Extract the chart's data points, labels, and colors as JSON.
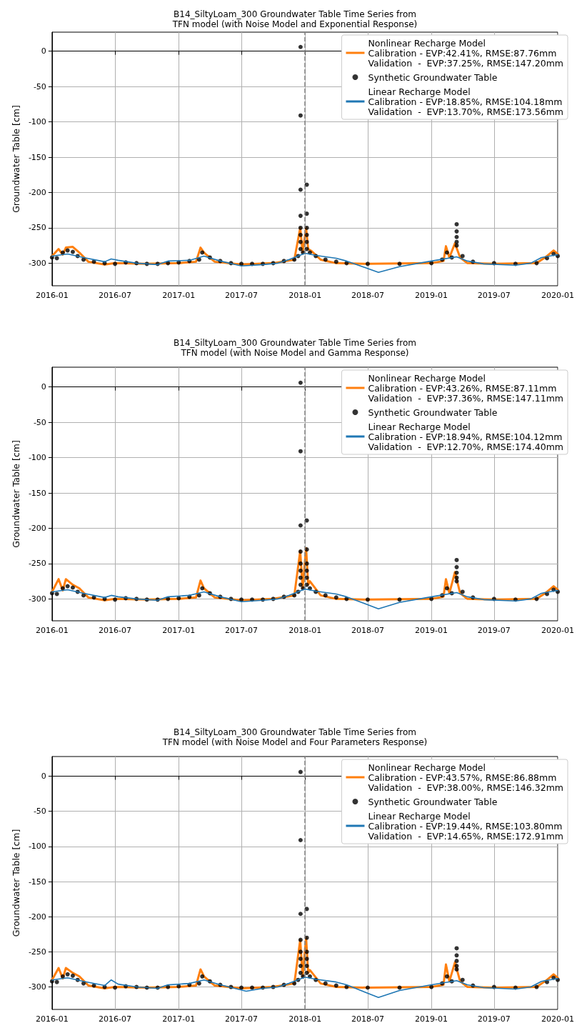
{
  "chart_data": [
    {
      "type": "line",
      "title": "B14_SiltyLoam_300 Groundwater Table Time Series from\nTFN model (with Noise Model and Exponential Response)",
      "ylabel": "Groundwater Table [cm]",
      "xlim": [
        "2016-01",
        "2020-01"
      ],
      "xticks": [
        "2016-01",
        "2016-07",
        "2017-01",
        "2017-07",
        "2018-01",
        "2018-07",
        "2019-01",
        "2019-07",
        "2020-01"
      ],
      "ylim": [
        -332,
        27
      ],
      "yticks": [
        -300,
        -250,
        -200,
        -150,
        -100,
        -50,
        0
      ],
      "grid": true,
      "legend": "top right",
      "ref_lines": [
        {
          "axis": "x",
          "value": "2018-01-01",
          "color": "#808080",
          "line_style": "dashed"
        }
      ],
      "series": [
        {
          "name": "Nonlinear Recharge Model\nCalibration - EVP:42.41%, RMSE:87.76mm\nValidation  -  EVP:37.25%, RMSE:147.20mm",
          "type": "line",
          "color": "#ff7f0e",
          "marker": "none",
          "line_style": "solid",
          "x": [
            "2016-01-01",
            "2016-01-20",
            "2016-02-01",
            "2016-02-10",
            "2016-03-01",
            "2016-03-20",
            "2016-04-15",
            "2016-06-01",
            "2016-07-01",
            "2016-10-01",
            "2017-01-01",
            "2017-02-20",
            "2017-03-05",
            "2017-03-15",
            "2017-04-15",
            "2017-07-01",
            "2017-10-01",
            "2017-12-01",
            "2017-12-18",
            "2017-12-25",
            "2018-01-04",
            "2018-01-10",
            "2018-01-20",
            "2018-02-15",
            "2018-04-01",
            "2018-07-01",
            "2019-01-01",
            "2019-02-05",
            "2019-02-12",
            "2019-02-22",
            "2019-03-10",
            "2019-03-25",
            "2019-04-15",
            "2019-07-01",
            "2019-11-01",
            "2019-12-01",
            "2019-12-20",
            "2020-01-01"
          ],
          "values": [
            -290,
            -280,
            -288,
            -278,
            -277,
            -285,
            -298,
            -302,
            -300,
            -301,
            -300,
            -298,
            -278,
            -285,
            -298,
            -302,
            -300,
            -295,
            -250,
            -285,
            -250,
            -280,
            -283,
            -295,
            -300,
            -301,
            -300,
            -297,
            -276,
            -292,
            -272,
            -292,
            -300,
            -301,
            -300,
            -290,
            -282,
            -287
          ]
        },
        {
          "name": "Synthetic Groundwater Table",
          "type": "scatter",
          "color": "#000000",
          "marker": "circle",
          "x": [
            "2016-01-01",
            "2016-01-15",
            "2016-02-01",
            "2016-02-15",
            "2016-03-01",
            "2016-03-15",
            "2016-04-01",
            "2016-05-01",
            "2016-06-01",
            "2016-07-01",
            "2016-08-01",
            "2016-09-01",
            "2016-10-01",
            "2016-11-01",
            "2016-12-01",
            "2017-01-01",
            "2017-02-01",
            "2017-03-01",
            "2017-03-10",
            "2017-04-01",
            "2017-05-01",
            "2017-06-01",
            "2017-07-01",
            "2017-08-01",
            "2017-09-01",
            "2017-10-01",
            "2017-11-01",
            "2017-12-01",
            "2017-12-12",
            "2017-12-19",
            "2017-12-19",
            "2017-12-19",
            "2017-12-19",
            "2017-12-19",
            "2017-12-19",
            "2017-12-19",
            "2017-12-19",
            "2017-12-26",
            "2018-01-06",
            "2018-01-06",
            "2018-01-06",
            "2018-01-06",
            "2018-01-06",
            "2018-01-06",
            "2018-01-15",
            "2018-02-01",
            "2018-03-01",
            "2018-04-01",
            "2018-05-01",
            "2018-07-01",
            "2018-10-01",
            "2019-01-01",
            "2019-02-01",
            "2019-02-15",
            "2019-03-01",
            "2019-03-15",
            "2019-03-15",
            "2019-03-15",
            "2019-03-15",
            "2019-03-15",
            "2019-04-01",
            "2019-05-01",
            "2019-07-01",
            "2019-09-01",
            "2019-11-01",
            "2019-12-01",
            "2019-12-20",
            "2020-01-01"
          ],
          "values": [
            -292,
            -293,
            -285,
            -282,
            -284,
            -290,
            -295,
            -298,
            -300,
            -301,
            -299,
            -300,
            -301,
            -301,
            -300,
            -299,
            -297,
            -295,
            -285,
            -292,
            -297,
            -300,
            -301,
            -301,
            -301,
            -300,
            -297,
            -295,
            -290,
            6,
            -91,
            -196,
            -233,
            -250,
            -260,
            -270,
            -280,
            -285,
            -189,
            -230,
            -250,
            -260,
            -270,
            -280,
            -285,
            -290,
            -295,
            -298,
            -300,
            -301,
            -301,
            -300,
            -295,
            -285,
            -292,
            -245,
            -255,
            -263,
            -270,
            -275,
            -290,
            -298,
            -300,
            -301,
            -300,
            -293,
            -287,
            -290
          ]
        },
        {
          "name": "Linear Recharge Model\nCalibration - EVP:18.85%, RMSE:104.18mm\nValidation  -  EVP:13.70%, RMSE:173.56mm",
          "type": "line",
          "color": "#1f77b4",
          "marker": "none",
          "line_style": "solid",
          "x": [
            "2016-01-01",
            "2016-02-15",
            "2016-04-01",
            "2016-06-01",
            "2016-06-20",
            "2016-07-10",
            "2016-09-01",
            "2016-11-01",
            "2016-12-01",
            "2017-02-01",
            "2017-03-15",
            "2017-05-01",
            "2017-07-01",
            "2017-09-01",
            "2017-10-15",
            "2017-11-15",
            "2018-01-01",
            "2018-02-01",
            "2018-04-01",
            "2018-05-01",
            "2018-08-01",
            "2018-10-01",
            "2019-01-01",
            "2019-03-15",
            "2019-04-15",
            "2019-06-01",
            "2019-09-01",
            "2019-10-15",
            "2019-11-15",
            "2020-01-01"
          ],
          "values": [
            -290,
            -287,
            -292,
            -298,
            -294,
            -296,
            -300,
            -302,
            -297,
            -296,
            -290,
            -297,
            -304,
            -302,
            -300,
            -295,
            -286,
            -289,
            -293,
            -297,
            -313,
            -305,
            -297,
            -291,
            -297,
            -301,
            -303,
            -300,
            -292,
            -288
          ]
        }
      ]
    },
    {
      "type": "line",
      "title": "B14_SiltyLoam_300 Groundwater Table Time Series from\nTFN model (with Noise Model and Gamma Response)",
      "ylabel": "Groundwater Table [cm]",
      "xlim": [
        "2016-01",
        "2020-01"
      ],
      "xticks": [
        "2016-01",
        "2016-07",
        "2017-01",
        "2017-07",
        "2018-01",
        "2018-07",
        "2019-01",
        "2019-07",
        "2020-01"
      ],
      "ylim": [
        -331,
        28
      ],
      "yticks": [
        -300,
        -250,
        -200,
        -150,
        -100,
        -50,
        0
      ],
      "grid": true,
      "legend": "top right",
      "ref_lines": [
        {
          "axis": "x",
          "value": "2018-01-01",
          "color": "#808080",
          "line_style": "dashed"
        }
      ],
      "series": [
        {
          "name": "Nonlinear Recharge Model\nCalibration - EVP:43.26%, RMSE:87.11mm\nValidation  -  EVP:37.36%, RMSE:147.11mm",
          "type": "line",
          "color": "#ff7f0e",
          "marker": "none",
          "line_style": "solid",
          "x": [
            "2016-01-01",
            "2016-01-20",
            "2016-02-01",
            "2016-02-10",
            "2016-03-01",
            "2016-03-20",
            "2016-04-15",
            "2016-06-01",
            "2016-07-01",
            "2016-10-01",
            "2017-01-01",
            "2017-02-20",
            "2017-03-05",
            "2017-03-15",
            "2017-04-15",
            "2017-07-01",
            "2017-10-01",
            "2017-12-01",
            "2017-12-18",
            "2017-12-25",
            "2018-01-04",
            "2018-01-10",
            "2018-01-15",
            "2018-02-15",
            "2018-04-01",
            "2018-07-01",
            "2019-01-01",
            "2019-02-05",
            "2019-02-12",
            "2019-02-22",
            "2019-03-10",
            "2019-03-25",
            "2019-04-15",
            "2019-07-01",
            "2019-11-01",
            "2019-12-01",
            "2019-12-20",
            "2020-01-01"
          ],
          "values": [
            -290,
            -272,
            -288,
            -272,
            -280,
            -285,
            -298,
            -302,
            -300,
            -301,
            -300,
            -298,
            -274,
            -285,
            -298,
            -302,
            -300,
            -295,
            -232,
            -285,
            -228,
            -280,
            -275,
            -295,
            -300,
            -301,
            -300,
            -297,
            -272,
            -292,
            -262,
            -292,
            -300,
            -301,
            -300,
            -290,
            -282,
            -287
          ]
        },
        {
          "name": "Synthetic Groundwater Table",
          "type": "scatter",
          "color": "#000000",
          "marker": "circle",
          "x": [
            "2016-01-01",
            "2016-01-15",
            "2016-02-01",
            "2016-02-15",
            "2016-03-01",
            "2016-03-15",
            "2016-04-01",
            "2016-05-01",
            "2016-06-01",
            "2016-07-01",
            "2016-08-01",
            "2016-09-01",
            "2016-10-01",
            "2016-11-01",
            "2016-12-01",
            "2017-01-01",
            "2017-02-01",
            "2017-03-01",
            "2017-03-10",
            "2017-04-01",
            "2017-05-01",
            "2017-06-01",
            "2017-07-01",
            "2017-08-01",
            "2017-09-01",
            "2017-10-01",
            "2017-11-01",
            "2017-12-01",
            "2017-12-12",
            "2017-12-19",
            "2017-12-19",
            "2017-12-19",
            "2017-12-19",
            "2017-12-19",
            "2017-12-19",
            "2017-12-19",
            "2017-12-19",
            "2017-12-26",
            "2018-01-06",
            "2018-01-06",
            "2018-01-06",
            "2018-01-06",
            "2018-01-06",
            "2018-01-06",
            "2018-01-15",
            "2018-02-01",
            "2018-03-01",
            "2018-04-01",
            "2018-05-01",
            "2018-07-01",
            "2018-10-01",
            "2019-01-01",
            "2019-02-01",
            "2019-02-15",
            "2019-03-01",
            "2019-03-15",
            "2019-03-15",
            "2019-03-15",
            "2019-03-15",
            "2019-03-15",
            "2019-04-01",
            "2019-05-01",
            "2019-07-01",
            "2019-09-01",
            "2019-11-01",
            "2019-12-01",
            "2019-12-20",
            "2020-01-01"
          ],
          "values": [
            -292,
            -293,
            -285,
            -282,
            -284,
            -290,
            -295,
            -298,
            -300,
            -301,
            -299,
            -300,
            -301,
            -301,
            -300,
            -299,
            -297,
            -295,
            -285,
            -292,
            -297,
            -300,
            -301,
            -301,
            -301,
            -300,
            -297,
            -295,
            -290,
            6,
            -91,
            -196,
            -233,
            -250,
            -260,
            -270,
            -280,
            -285,
            -189,
            -230,
            -250,
            -260,
            -270,
            -280,
            -285,
            -290,
            -295,
            -298,
            -300,
            -301,
            -301,
            -300,
            -295,
            -285,
            -292,
            -245,
            -255,
            -263,
            -270,
            -275,
            -290,
            -298,
            -300,
            -301,
            -300,
            -293,
            -287,
            -290
          ]
        },
        {
          "name": "Linear Recharge Model\nCalibration - EVP:18.94%, RMSE:104.12mm\nValidation  -  EVP:12.70%, RMSE:174.40mm",
          "type": "line",
          "color": "#1f77b4",
          "marker": "none",
          "line_style": "solid",
          "x": [
            "2016-01-01",
            "2016-02-15",
            "2016-04-01",
            "2016-06-01",
            "2016-06-20",
            "2016-07-10",
            "2016-09-01",
            "2016-11-01",
            "2016-12-01",
            "2017-02-01",
            "2017-03-15",
            "2017-05-01",
            "2017-07-01",
            "2017-09-01",
            "2017-10-15",
            "2017-11-15",
            "2018-01-01",
            "2018-02-01",
            "2018-04-01",
            "2018-05-01",
            "2018-08-01",
            "2018-10-01",
            "2019-01-01",
            "2019-03-15",
            "2019-04-15",
            "2019-06-01",
            "2019-09-01",
            "2019-10-15",
            "2019-11-15",
            "2020-01-01"
          ],
          "values": [
            -290,
            -287,
            -292,
            -298,
            -295,
            -297,
            -300,
            -302,
            -297,
            -295,
            -290,
            -297,
            -304,
            -302,
            -300,
            -295,
            -286,
            -289,
            -293,
            -297,
            -314,
            -305,
            -297,
            -291,
            -297,
            -301,
            -303,
            -300,
            -292,
            -288
          ]
        }
      ]
    },
    {
      "type": "line",
      "title": "B14_SiltyLoam_300 Groundwater Table Time Series from\nTFN model (with Noise Model and Four Parameters Response)",
      "ylabel": "Groundwater Table [cm]",
      "xlim": [
        "2016-01",
        "2020-01"
      ],
      "xticks": [
        "2016-01",
        "2016-07",
        "2017-01",
        "2017-07",
        "2018-01",
        "2018-07",
        "2019-01",
        "2019-07",
        "2020-01"
      ],
      "ylim": [
        -332,
        28
      ],
      "yticks": [
        -300,
        -250,
        -200,
        -150,
        -100,
        -50,
        0
      ],
      "grid": true,
      "legend": "top right",
      "ref_lines": [
        {
          "axis": "x",
          "value": "2018-01-01",
          "color": "#808080",
          "line_style": "dashed"
        }
      ],
      "series": [
        {
          "name": "Nonlinear Recharge Model\nCalibration - EVP:43.57%, RMSE:86.88mm\nValidation  -  EVP:38.00%, RMSE:146.32mm",
          "type": "line",
          "color": "#ff7f0e",
          "marker": "none",
          "line_style": "solid",
          "x": [
            "2016-01-01",
            "2016-01-20",
            "2016-02-01",
            "2016-02-10",
            "2016-03-01",
            "2016-03-20",
            "2016-04-15",
            "2016-06-01",
            "2016-07-01",
            "2016-10-01",
            "2017-01-01",
            "2017-02-20",
            "2017-03-05",
            "2017-03-15",
            "2017-04-15",
            "2017-07-01",
            "2017-10-01",
            "2017-12-01",
            "2017-12-18",
            "2017-12-25",
            "2018-01-04",
            "2018-01-10",
            "2018-01-15",
            "2018-02-15",
            "2018-04-01",
            "2018-07-01",
            "2019-01-01",
            "2019-02-05",
            "2019-02-12",
            "2019-02-22",
            "2019-03-10",
            "2019-03-25",
            "2019-04-15",
            "2019-07-01",
            "2019-11-01",
            "2019-12-01",
            "2019-12-20",
            "2020-01-01"
          ],
          "values": [
            -290,
            -273,
            -288,
            -273,
            -280,
            -285,
            -298,
            -302,
            -300,
            -301,
            -300,
            -298,
            -275,
            -285,
            -298,
            -302,
            -300,
            -295,
            -233,
            -285,
            -230,
            -280,
            -276,
            -295,
            -300,
            -301,
            -300,
            -297,
            -268,
            -292,
            -265,
            -292,
            -300,
            -301,
            -300,
            -290,
            -282,
            -287
          ]
        },
        {
          "name": "Synthetic Groundwater Table",
          "type": "scatter",
          "color": "#000000",
          "marker": "circle",
          "x": [
            "2016-01-01",
            "2016-01-15",
            "2016-02-01",
            "2016-02-15",
            "2016-03-01",
            "2016-03-15",
            "2016-04-01",
            "2016-05-01",
            "2016-06-01",
            "2016-07-01",
            "2016-08-01",
            "2016-09-01",
            "2016-10-01",
            "2016-11-01",
            "2016-12-01",
            "2017-01-01",
            "2017-02-01",
            "2017-03-01",
            "2017-03-10",
            "2017-04-01",
            "2017-05-01",
            "2017-06-01",
            "2017-07-01",
            "2017-08-01",
            "2017-09-01",
            "2017-10-01",
            "2017-11-01",
            "2017-12-01",
            "2017-12-12",
            "2017-12-19",
            "2017-12-19",
            "2017-12-19",
            "2017-12-19",
            "2017-12-19",
            "2017-12-19",
            "2017-12-19",
            "2017-12-19",
            "2017-12-26",
            "2018-01-06",
            "2018-01-06",
            "2018-01-06",
            "2018-01-06",
            "2018-01-06",
            "2018-01-06",
            "2018-01-15",
            "2018-02-01",
            "2018-03-01",
            "2018-04-01",
            "2018-05-01",
            "2018-07-01",
            "2018-10-01",
            "2019-01-01",
            "2019-02-01",
            "2019-02-15",
            "2019-03-01",
            "2019-03-15",
            "2019-03-15",
            "2019-03-15",
            "2019-03-15",
            "2019-03-15",
            "2019-04-01",
            "2019-05-01",
            "2019-07-01",
            "2019-09-01",
            "2019-11-01",
            "2019-12-01",
            "2019-12-20",
            "2020-01-01"
          ],
          "values": [
            -292,
            -293,
            -285,
            -282,
            -284,
            -290,
            -295,
            -298,
            -300,
            -301,
            -299,
            -300,
            -301,
            -301,
            -300,
            -299,
            -297,
            -295,
            -285,
            -292,
            -297,
            -300,
            -301,
            -301,
            -301,
            -300,
            -297,
            -295,
            -290,
            6,
            -91,
            -196,
            -233,
            -250,
            -260,
            -270,
            -280,
            -285,
            -189,
            -230,
            -250,
            -260,
            -270,
            -280,
            -285,
            -290,
            -295,
            -298,
            -300,
            -301,
            -301,
            -300,
            -295,
            -285,
            -292,
            -245,
            -255,
            -263,
            -270,
            -275,
            -290,
            -298,
            -300,
            -301,
            -300,
            -293,
            -287,
            -290
          ]
        },
        {
          "name": "Linear Recharge Model\nCalibration - EVP:19.44%, RMSE:103.80mm\nValidation  -  EVP:14.65%, RMSE:172.91mm",
          "type": "line",
          "color": "#1f77b4",
          "marker": "none",
          "line_style": "solid",
          "x": [
            "2016-01-01",
            "2016-02-15",
            "2016-04-01",
            "2016-06-01",
            "2016-06-20",
            "2016-07-10",
            "2016-09-01",
            "2016-11-01",
            "2016-12-01",
            "2017-02-01",
            "2017-03-15",
            "2017-05-01",
            "2017-07-15",
            "2017-09-01",
            "2017-10-15",
            "2017-11-15",
            "2018-01-01",
            "2018-02-01",
            "2018-04-01",
            "2018-05-01",
            "2018-08-01",
            "2018-10-01",
            "2019-01-01",
            "2019-03-15",
            "2019-04-15",
            "2019-06-01",
            "2019-09-01",
            "2019-10-15",
            "2019-11-15",
            "2020-01-01"
          ],
          "values": [
            -290,
            -287,
            -292,
            -298,
            -290,
            -296,
            -300,
            -302,
            -297,
            -295,
            -290,
            -297,
            -306,
            -302,
            -300,
            -295,
            -286,
            -289,
            -293,
            -297,
            -315,
            -305,
            -297,
            -291,
            -297,
            -301,
            -303,
            -300,
            -292,
            -288
          ]
        }
      ]
    }
  ]
}
